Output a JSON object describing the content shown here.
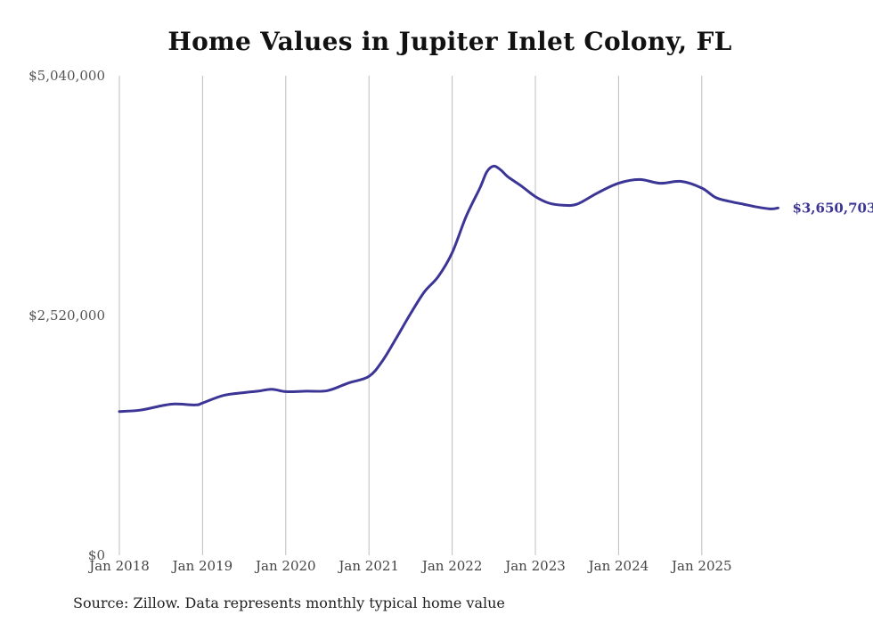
{
  "chart_data": {
    "type": "line",
    "title": "Home Values in Jupiter Inlet Colony, FL",
    "source": "Source: Zillow. Data represents monthly typical home value",
    "ylim": [
      0,
      5040000
    ],
    "y_ticks": [
      0,
      2520000,
      5040000
    ],
    "y_tick_labels": [
      "$0",
      "$2,520,000",
      "$5,040,000"
    ],
    "x_ticks": [
      2018,
      2019,
      2020,
      2021,
      2022,
      2023,
      2024,
      2025
    ],
    "x_tick_labels": [
      "Jan 2018",
      "Jan 2019",
      "Jan 2020",
      "Jan 2021",
      "Jan 2022",
      "Jan 2023",
      "Jan 2024",
      "Jan 2025"
    ],
    "grid": "vertical",
    "series": [
      {
        "name": "Typical home value",
        "color": "#3b3596",
        "end_label": "$3,650,703",
        "x": [
          2018.0,
          2018.25,
          2018.5,
          2018.667,
          2018.917,
          2019.0,
          2019.25,
          2019.5,
          2019.667,
          2019.833,
          2020.0,
          2020.25,
          2020.5,
          2020.75,
          2021.0,
          2021.167,
          2021.333,
          2021.5,
          2021.667,
          2021.833,
          2022.0,
          2022.167,
          2022.333,
          2022.417,
          2022.5,
          2022.583,
          2022.667,
          2022.833,
          2023.0,
          2023.167,
          2023.333,
          2023.5,
          2023.75,
          2024.0,
          2024.25,
          2024.5,
          2024.75,
          2025.0,
          2025.167,
          2025.333,
          2025.5,
          2025.667,
          2025.833,
          2025.917
        ],
        "values": [
          1510000,
          1525000,
          1570000,
          1590000,
          1580000,
          1600000,
          1680000,
          1710000,
          1725000,
          1745000,
          1720000,
          1725000,
          1730000,
          1810000,
          1880000,
          2050000,
          2290000,
          2540000,
          2770000,
          2930000,
          3180000,
          3560000,
          3860000,
          4030000,
          4090000,
          4050000,
          3980000,
          3880000,
          3770000,
          3700000,
          3680000,
          3690000,
          3810000,
          3910000,
          3950000,
          3910000,
          3930000,
          3860000,
          3760000,
          3720000,
          3690000,
          3660000,
          3640000,
          3650703
        ]
      }
    ]
  }
}
